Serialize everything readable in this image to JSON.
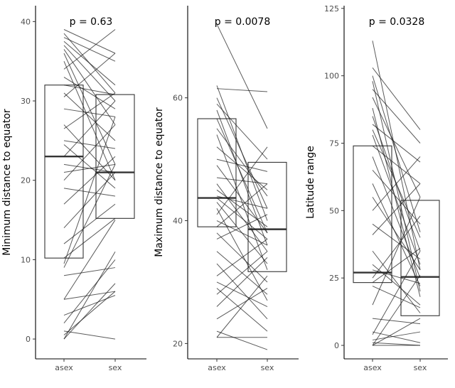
{
  "chart_data": [
    {
      "type": "box",
      "categories": [
        "asex",
        "sex"
      ],
      "ylabel": "Minimum distance to equator",
      "annotation": "p = 0.63",
      "ylim": [
        -2.5,
        42
      ],
      "yticks": [
        0,
        10,
        20,
        30,
        40
      ],
      "boxes": [
        {
          "q1": 10.2,
          "median": 23.0,
          "q3": 32.0
        },
        {
          "q1": 15.2,
          "median": 21.0,
          "q3": 30.8
        }
      ],
      "pairs": [
        [
          39,
          36
        ],
        [
          38.5,
          31
        ],
        [
          38,
          35
        ],
        [
          37.5,
          32
        ],
        [
          37,
          30
        ],
        [
          36.5,
          27
        ],
        [
          36,
          22
        ],
        [
          35,
          20
        ],
        [
          34,
          39
        ],
        [
          33,
          29
        ],
        [
          31,
          25
        ],
        [
          30.5,
          36
        ],
        [
          29,
          28
        ],
        [
          27,
          20
        ],
        [
          26.5,
          31
        ],
        [
          25,
          24
        ],
        [
          24.5,
          19
        ],
        [
          23,
          30
        ],
        [
          22,
          21
        ],
        [
          21,
          22
        ],
        [
          20,
          27
        ],
        [
          19,
          18
        ],
        [
          17,
          23
        ],
        [
          14,
          21
        ],
        [
          12,
          17
        ],
        [
          9.5,
          28
        ],
        [
          9,
          22
        ],
        [
          8,
          9
        ],
        [
          5,
          6
        ],
        [
          5,
          15
        ],
        [
          3,
          5.5
        ],
        [
          2,
          10
        ],
        [
          1,
          0
        ],
        [
          0.5,
          6
        ],
        [
          0,
          11
        ],
        [
          0,
          7
        ],
        [
          10.2,
          15.2
        ],
        [
          32,
          30.8
        ]
      ]
    },
    {
      "type": "box",
      "categories": [
        "asex",
        "sex"
      ],
      "ylabel": "Maximum distance to equator",
      "annotation": "p = 0.0078",
      "ylim": [
        17.5,
        75
      ],
      "yticks": [
        20,
        40,
        60
      ],
      "boxes": [
        {
          "q1": 39.0,
          "median": 43.7,
          "q3": 56.6
        },
        {
          "q1": 31.7,
          "median": 38.6,
          "q3": 49.5
        }
      ],
      "pairs": [
        [
          72,
          55
        ],
        [
          62,
          40
        ],
        [
          61.5,
          61
        ],
        [
          60,
          42
        ],
        [
          59,
          50
        ],
        [
          58,
          36
        ],
        [
          56.6,
          38
        ],
        [
          55,
          44
        ],
        [
          54,
          32
        ],
        [
          52,
          45
        ],
        [
          50,
          48
        ],
        [
          49,
          38
        ],
        [
          47,
          46
        ],
        [
          46,
          35
        ],
        [
          45,
          39
        ],
        [
          44,
          42
        ],
        [
          43.7,
          37
        ],
        [
          43,
          33
        ],
        [
          42,
          27
        ],
        [
          41,
          52
        ],
        [
          40,
          36
        ],
        [
          39,
          46
        ],
        [
          38,
          30
        ],
        [
          37,
          41
        ],
        [
          35,
          28
        ],
        [
          33,
          24
        ],
        [
          31,
          37
        ],
        [
          30,
          26
        ],
        [
          29,
          22
        ],
        [
          28,
          35
        ],
        [
          26,
          34
        ],
        [
          24,
          29
        ],
        [
          22,
          19
        ],
        [
          21,
          21
        ],
        [
          21,
          31
        ]
      ]
    },
    {
      "type": "box",
      "categories": [
        "asex",
        "sex"
      ],
      "ylabel": "Latitude range",
      "annotation": "p = 0.0328",
      "ylim": [
        -5,
        126
      ],
      "yticks": [
        0,
        25,
        50,
        75,
        100,
        125
      ],
      "boxes": [
        {
          "q1": 23.3,
          "median": 27.0,
          "q3": 74.0
        },
        {
          "q1": 11.0,
          "median": 25.4,
          "q3": 53.8
        }
      ],
      "pairs": [
        [
          113,
          28
        ],
        [
          103,
          80
        ],
        [
          100,
          42
        ],
        [
          98,
          20
        ],
        [
          95,
          75
        ],
        [
          92,
          55
        ],
        [
          88,
          18
        ],
        [
          85,
          35
        ],
        [
          82,
          68
        ],
        [
          80,
          40
        ],
        [
          78,
          30
        ],
        [
          74,
          60
        ],
        [
          70,
          25
        ],
        [
          65,
          45
        ],
        [
          60,
          22
        ],
        [
          55,
          28
        ],
        [
          50,
          70
        ],
        [
          45,
          32
        ],
        [
          41,
          60
        ],
        [
          35,
          12
        ],
        [
          30,
          15
        ],
        [
          28,
          23
        ],
        [
          25,
          48
        ],
        [
          23.3,
          36
        ],
        [
          22,
          14
        ],
        [
          15,
          55
        ],
        [
          10,
          8
        ],
        [
          5,
          1
        ],
        [
          4,
          35
        ],
        [
          2,
          5
        ],
        [
          1,
          0
        ],
        [
          0,
          10
        ],
        [
          0,
          0
        ],
        [
          0,
          26
        ]
      ]
    }
  ]
}
